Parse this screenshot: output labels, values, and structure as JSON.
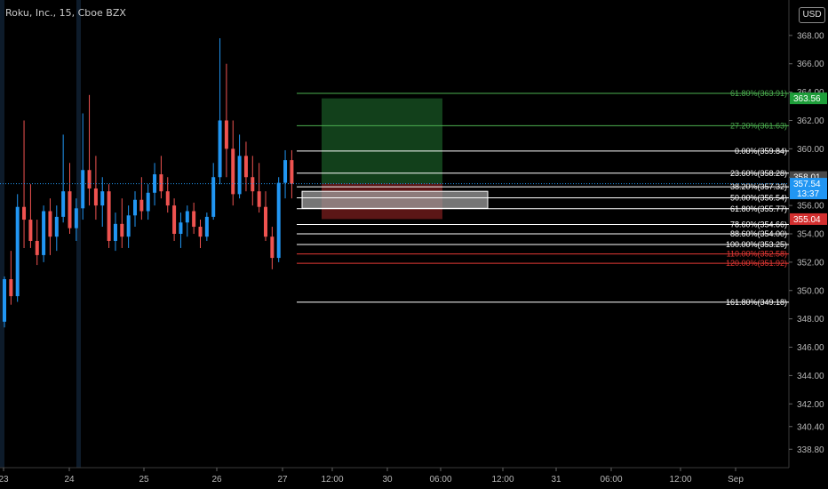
{
  "header": {
    "symbol_title": "Roku, Inc., 15, Cboe BZX",
    "currency_button": "USD"
  },
  "colors": {
    "background": "#000000",
    "up": "#2196f3",
    "down": "#ef5350",
    "target_zone": "#1e6b2d",
    "stop_zone": "#7a1e1e",
    "fib_green": "#4caf50",
    "fib_white": "#ffffff",
    "fib_red": "#e53935",
    "current_price": "#2196f3"
  },
  "chart_data": {
    "type": "candlestick",
    "title": "Roku, Inc., 15, Cboe BZX",
    "ylim": [
      337.5,
      370.5
    ],
    "y_ticks": [
      "338.80",
      "340.40",
      "342.00",
      "344.00",
      "346.00",
      "348.00",
      "350.00",
      "352.00",
      "354.00",
      "356.00",
      "358.00",
      "360.00",
      "362.00",
      "364.00",
      "366.00",
      "368.00"
    ],
    "x_ticks": [
      "23",
      "24",
      "25",
      "26",
      "27",
      "12:00",
      "30",
      "06:00",
      "12:00",
      "31",
      "06:00",
      "12:00",
      "Sep"
    ],
    "x_tick_index": [
      4,
      78,
      162,
      244,
      318,
      374,
      436,
      496,
      566,
      626,
      688,
      766,
      828
    ],
    "fib_levels": [
      {
        "label": "161.80%(349.18)",
        "value": 349.18,
        "color": "#ffffff"
      },
      {
        "label": "120.00%(351.92)",
        "value": 351.92,
        "color": "#e53935"
      },
      {
        "label": "110.00%(352.58)",
        "value": 352.58,
        "color": "#e53935"
      },
      {
        "label": "100.00%(353.25)",
        "value": 353.25,
        "color": "#ffffff"
      },
      {
        "label": "88.60%(354.00)",
        "value": 354.0,
        "color": "#ffffff"
      },
      {
        "label": "78.60%(354.66)",
        "value": 354.66,
        "color": "#ffffff"
      },
      {
        "label": "61.80%(355.77)",
        "value": 355.77,
        "color": "#ffffff"
      },
      {
        "label": "50.00%(356.54)",
        "value": 356.54,
        "color": "#ffffff"
      },
      {
        "label": "38.20%(357.32)",
        "value": 357.32,
        "color": "#ffffff"
      },
      {
        "label": "23.60%(358.28)",
        "value": 358.28,
        "color": "#ffffff"
      },
      {
        "label": "0.00%(359.84)",
        "value": 359.84,
        "color": "#ffffff"
      },
      {
        "label": "27.20%(361.63)",
        "value": 361.63,
        "color": "#4caf50"
      },
      {
        "label": "61.80%(363.91)",
        "value": 363.91,
        "color": "#4caf50"
      }
    ],
    "price_badges": [
      {
        "label": "363.56",
        "value": 363.56,
        "color": "#1e9e3a"
      },
      {
        "label": "358.01",
        "value": 358.01,
        "color": "#4a4a4a"
      },
      {
        "label": "357.54",
        "value": 357.54,
        "color": "#2196f3",
        "sub": "13:37"
      },
      {
        "label": "355.04",
        "value": 355.04,
        "color": "#d32f2f"
      }
    ],
    "target_zone": {
      "top": 363.56,
      "bottom": 357.54
    },
    "stop_zone": {
      "top": 357.54,
      "bottom": 355.04
    },
    "highlight_box": {
      "top": 357.0,
      "bottom": 355.8
    },
    "current_price": 357.54,
    "candles": [
      [
        347.8,
        351.0,
        347.4,
        350.8
      ],
      [
        350.8,
        352.8,
        349.0,
        349.6
      ],
      [
        349.6,
        356.8,
        349.2,
        355.9
      ],
      [
        355.9,
        362.0,
        353.0,
        355.0
      ],
      [
        355.0,
        357.5,
        353.0,
        353.5
      ],
      [
        353.5,
        355.0,
        351.8,
        352.5
      ],
      [
        352.5,
        356.0,
        352.0,
        355.6
      ],
      [
        355.6,
        356.5,
        352.5,
        353.8
      ],
      [
        353.8,
        356.0,
        352.8,
        355.2
      ],
      [
        355.2,
        361.0,
        354.8,
        357.0
      ],
      [
        357.0,
        359.0,
        354.0,
        354.4
      ],
      [
        354.4,
        356.5,
        353.5,
        355.8
      ],
      [
        355.8,
        362.5,
        355.0,
        358.5
      ],
      [
        358.5,
        363.8,
        356.0,
        357.2
      ],
      [
        357.2,
        359.5,
        355.0,
        356.0
      ],
      [
        356.0,
        358.0,
        354.5,
        357.0
      ],
      [
        357.0,
        357.5,
        353.0,
        353.5
      ],
      [
        353.5,
        355.5,
        352.8,
        354.7
      ],
      [
        354.7,
        356.5,
        353.0,
        353.8
      ],
      [
        353.8,
        356.0,
        353.0,
        355.3
      ],
      [
        355.3,
        357.0,
        354.5,
        356.4
      ],
      [
        356.4,
        358.0,
        355.0,
        355.6
      ],
      [
        355.6,
        357.5,
        355.0,
        356.9
      ],
      [
        356.9,
        359.0,
        356.0,
        358.2
      ],
      [
        358.2,
        359.5,
        356.5,
        357.0
      ],
      [
        357.0,
        358.0,
        355.5,
        356.0
      ],
      [
        356.0,
        356.5,
        353.5,
        354.0
      ],
      [
        354.0,
        355.5,
        353.0,
        354.8
      ],
      [
        354.8,
        356.0,
        353.8,
        355.6
      ],
      [
        355.6,
        356.2,
        354.0,
        354.5
      ],
      [
        354.5,
        355.0,
        353.0,
        353.8
      ],
      [
        353.8,
        355.5,
        353.5,
        355.2
      ],
      [
        355.2,
        359.0,
        355.0,
        358.0
      ],
      [
        358.0,
        367.8,
        357.5,
        362.0
      ],
      [
        362.0,
        366.0,
        358.0,
        360.0
      ],
      [
        360.0,
        362.0,
        356.0,
        356.8
      ],
      [
        356.8,
        361.0,
        356.5,
        359.5
      ],
      [
        359.5,
        360.5,
        357.0,
        358.0
      ],
      [
        358.0,
        359.5,
        356.0,
        357.0
      ],
      [
        357.0,
        359.0,
        355.5,
        355.9
      ],
      [
        355.9,
        357.0,
        353.5,
        353.8
      ],
      [
        353.8,
        354.5,
        351.5,
        352.3
      ],
      [
        352.3,
        358.0,
        352.0,
        357.6
      ],
      [
        357.6,
        359.9,
        356.5,
        359.2
      ],
      [
        359.2,
        359.9,
        356.5,
        357.54
      ]
    ]
  }
}
